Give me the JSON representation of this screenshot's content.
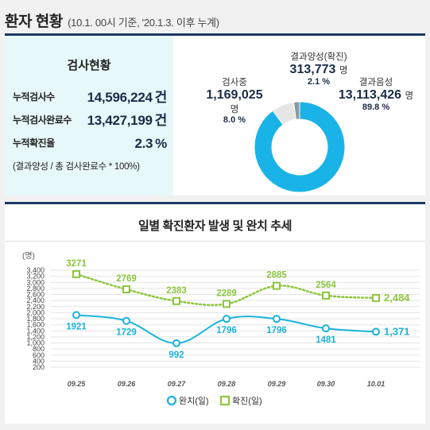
{
  "header": {
    "title": "환자 현황",
    "subtitle": "(10.1. 00시 기준, '20.1.3. 이후 누계)"
  },
  "summary": {
    "title": "검사현황",
    "rows": [
      {
        "label": "누적검사수",
        "value": "14,596,224",
        "unit": "건"
      },
      {
        "label": "누적검사완료수",
        "value": "13,427,199",
        "unit": "건"
      },
      {
        "label": "누적확진율",
        "value": "2.3",
        "unit": "%"
      }
    ],
    "note": "(결과양성 / 총 검사완료수 * 100%)"
  },
  "donut": {
    "colors": {
      "negative": "#1ab3e8",
      "testing": "#e6e6e6",
      "positive": "#8a9aa3"
    },
    "segments": [
      {
        "key": "testing",
        "name": "검사중",
        "value": "1,169,025",
        "unit": "명",
        "percent": "8.0 %",
        "fraction": 0.08
      },
      {
        "key": "positive",
        "name": "결과양성(확진)",
        "value": "313,773",
        "unit": "명",
        "percent": "2.1 %",
        "fraction": 0.021
      },
      {
        "key": "negative",
        "name": "결과음성",
        "value": "13,113,426",
        "unit": "명",
        "percent": "89.8 %",
        "fraction": 0.898
      }
    ]
  },
  "chart_data": {
    "type": "line",
    "title": "일별 확진환자 발생 및 완치 추세",
    "ylabel": "(명)",
    "categories": [
      "09.25",
      "09.26",
      "09.27",
      "09.28",
      "09.29",
      "09.30",
      "10.01"
    ],
    "yticks": [
      "3,400",
      "3,200",
      "3,000",
      "2,800",
      "2,600",
      "2,400",
      "2,200",
      "2,000",
      "1,800",
      "1,600",
      "1,400",
      "1,200",
      "1,000",
      "800",
      "600",
      "400",
      "200"
    ],
    "ylim": [
      200,
      3400
    ],
    "series": [
      {
        "name": "완치(일)",
        "color": "#1ab3d9",
        "marker": "circle",
        "style": "solid",
        "values": [
          1921,
          1729,
          992,
          1796,
          1796,
          1481,
          1371
        ],
        "labels": [
          "1921",
          "1729",
          "992",
          "1796",
          "1796",
          "1481",
          "1,371"
        ]
      },
      {
        "name": "확진(일)",
        "color": "#8cc63f",
        "marker": "square",
        "style": "dotted",
        "values": [
          3271,
          2769,
          2383,
          2289,
          2885,
          2564,
          2484
        ],
        "labels": [
          "3271",
          "2769",
          "2383",
          "2289",
          "2885",
          "2564",
          "2,484"
        ]
      }
    ],
    "legend": "bottom-center",
    "grid": true
  }
}
